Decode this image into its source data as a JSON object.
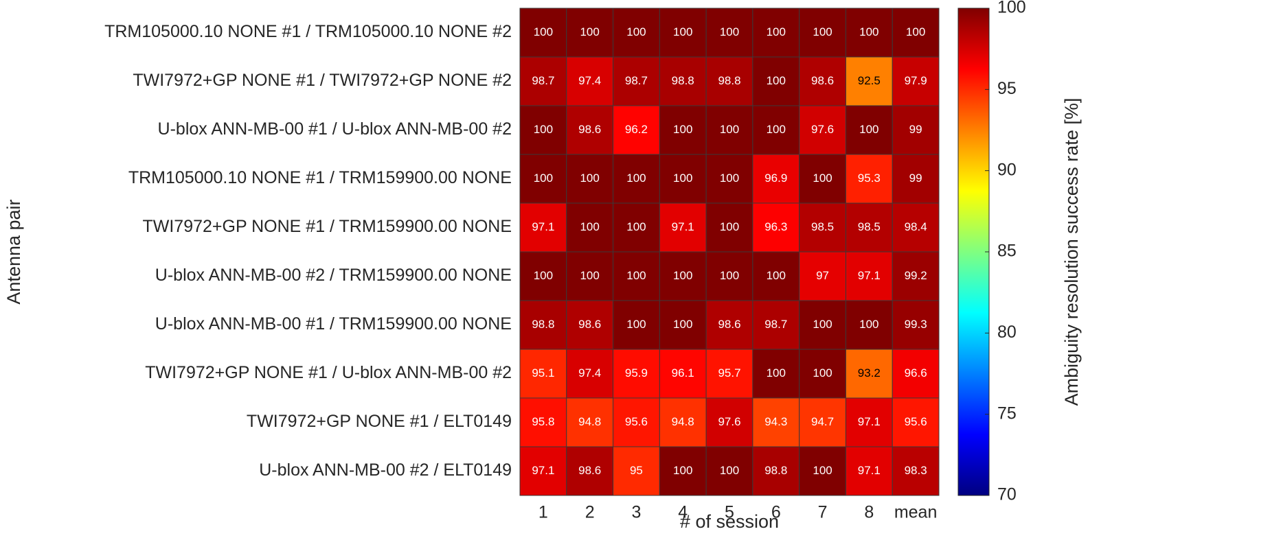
{
  "chart_data": {
    "type": "heatmap",
    "xlabel": "# of session",
    "ylabel": "Antenna pair",
    "colorbar_label": "Ambiguity resolution success rate [%]",
    "colormap": "jet",
    "categories": [
      "1",
      "2",
      "3",
      "4",
      "5",
      "6",
      "7",
      "8",
      "mean"
    ],
    "rows": [
      "TRM105000.10 NONE #1 / TRM105000.10 NONE #2",
      "TWI7972+GP NONE #1 / TWI7972+GP NONE #2",
      "U-blox ANN-MB-00 #1 / U-blox ANN-MB-00 #2",
      "TRM105000.10 NONE #1 / TRM159900.00 NONE",
      "TWI7972+GP NONE #1 / TRM159900.00 NONE",
      "U-blox ANN-MB-00 #2 / TRM159900.00 NONE",
      "U-blox ANN-MB-00 #1 / TRM159900.00 NONE",
      "TWI7972+GP NONE #1 / U-blox ANN-MB-00 #2",
      "TWI7972+GP NONE #1 / ELT0149",
      "U-blox ANN-MB-00 #2 / ELT0149"
    ],
    "z": [
      [
        100,
        100,
        100,
        100,
        100,
        100,
        100,
        100,
        100
      ],
      [
        98.7,
        97.4,
        98.7,
        98.8,
        98.8,
        100,
        98.6,
        92.5,
        97.9
      ],
      [
        100,
        98.6,
        96.2,
        100,
        100,
        100,
        97.6,
        100,
        99
      ],
      [
        100,
        100,
        100,
        100,
        100,
        96.9,
        100,
        95.3,
        99
      ],
      [
        97.1,
        100,
        100,
        97.1,
        100,
        96.3,
        98.5,
        98.5,
        98.4
      ],
      [
        100,
        100,
        100,
        100,
        100,
        100,
        97,
        97.1,
        99.2
      ],
      [
        98.8,
        98.6,
        100,
        100,
        98.6,
        98.7,
        100,
        100,
        99.3
      ],
      [
        95.1,
        97.4,
        95.9,
        96.1,
        95.7,
        100,
        100,
        93.2,
        96.6
      ],
      [
        95.8,
        94.8,
        95.6,
        94.8,
        97.6,
        94.3,
        94.7,
        97.1,
        95.6
      ],
      [
        97.1,
        98.6,
        95,
        100,
        100,
        98.8,
        100,
        97.1,
        98.3
      ]
    ],
    "clim": [
      70,
      100
    ],
    "cticks": [
      70,
      75,
      80,
      85,
      90,
      95,
      100
    ]
  }
}
